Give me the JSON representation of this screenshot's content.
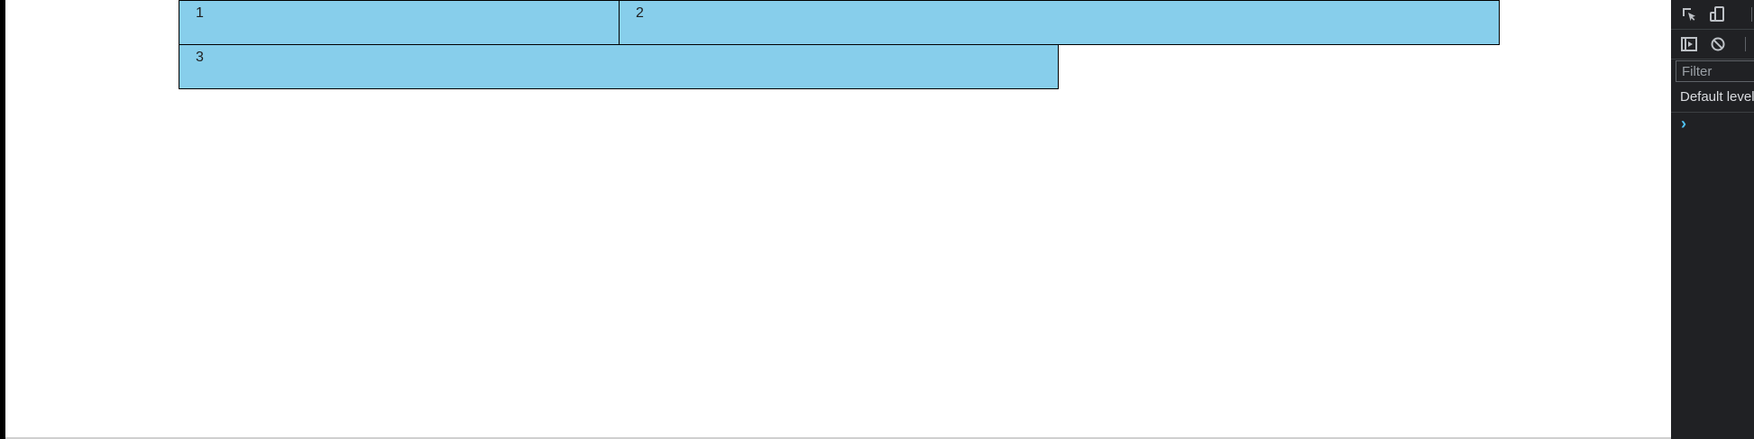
{
  "page": {
    "boxes": [
      {
        "label": "1"
      },
      {
        "label": "2"
      },
      {
        "label": "3"
      }
    ],
    "box_color": "#87ceeb",
    "box_border_color": "#000000"
  },
  "devtools": {
    "toolbar": {
      "inspect_icon": "inspect-element-icon",
      "device_icon": "device-toolbar-icon",
      "sidebar_icon": "console-sidebar-icon",
      "clear_icon": "clear-console-icon"
    },
    "filter": {
      "placeholder": "Filter",
      "value": ""
    },
    "levels": {
      "selected": "Default levels"
    },
    "prompt": "›",
    "background_color": "#202124",
    "prompt_color": "#4fc3f7"
  }
}
